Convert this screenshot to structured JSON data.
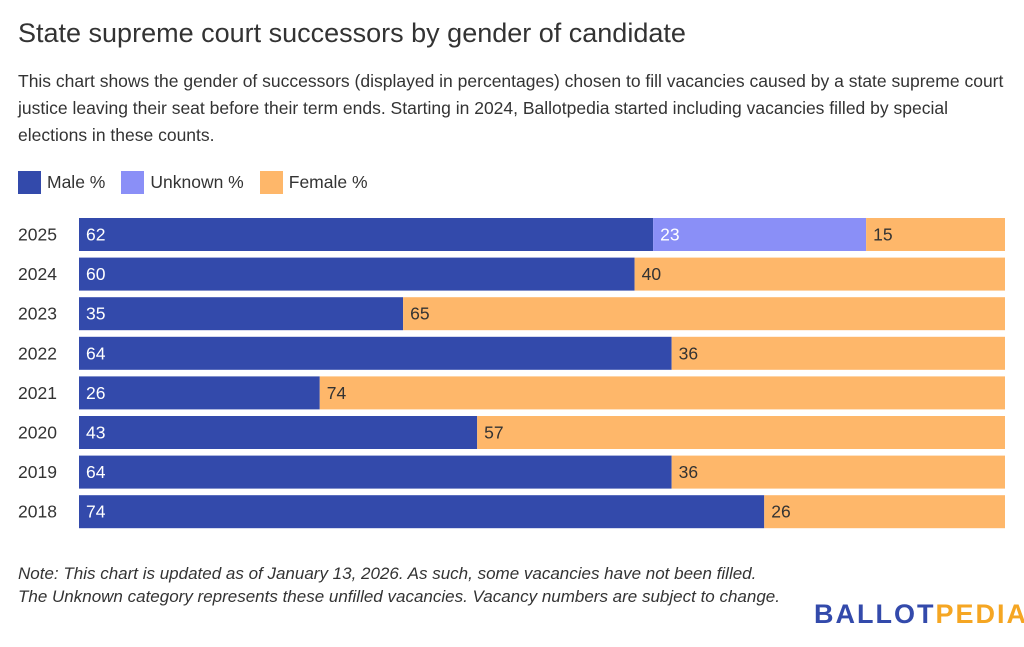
{
  "chart_data": {
    "type": "bar",
    "orientation": "horizontal",
    "stacked": true,
    "title": "State supreme court successors by gender of candidate",
    "subtitle": "This chart shows the gender of successors (displayed in percentages) chosen to fill vacancies caused by a state supreme court justice leaving their seat before their term ends. Starting in 2024, Ballotpedia started including vacancies filled by special elections in these counts.",
    "categories": [
      "2025",
      "2024",
      "2023",
      "2022",
      "2021",
      "2020",
      "2019",
      "2018"
    ],
    "series": [
      {
        "name": "Male %",
        "color": "#334aab",
        "label_color": "#ffffff",
        "values": [
          62,
          60,
          35,
          64,
          26,
          43,
          64,
          74
        ]
      },
      {
        "name": "Unknown %",
        "color": "#8a8ff7",
        "label_color": "#ffffff",
        "values": [
          23,
          0,
          0,
          0,
          0,
          0,
          0,
          0
        ]
      },
      {
        "name": "Female %",
        "color": "#feb76a",
        "label_color": "#333333",
        "values": [
          15,
          40,
          65,
          36,
          74,
          57,
          36,
          26
        ]
      }
    ],
    "xlim": [
      0,
      100
    ],
    "legend": "top-left",
    "note": "Note: This chart is updated as of January 13, 2026. As such, some vacancies have not been filled. The Unknown category represents these unfilled vacancies. Vacancy numbers are subject to change."
  },
  "logo": {
    "part1": "BALLOT",
    "part2": "PEDIA",
    "color1": "#334aab",
    "color2": "#f5a623"
  }
}
